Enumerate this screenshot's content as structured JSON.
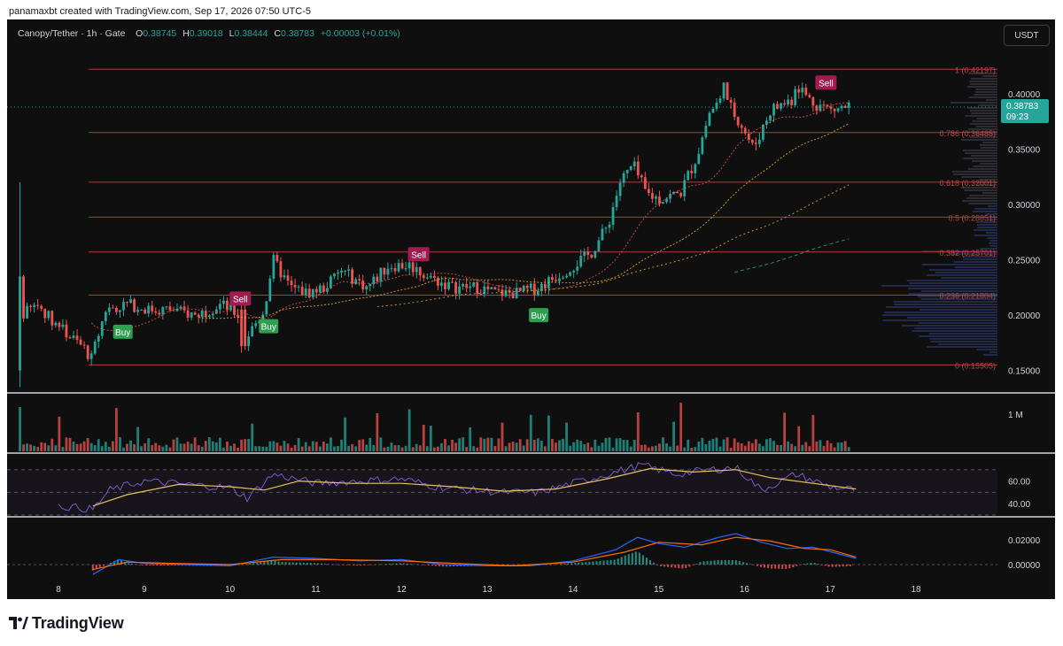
{
  "credit": "panamaxbt created with TradingView.com, Sep 17, 2026 07:50 UTC-5",
  "symbol_legend": {
    "pair": "Canopy/Tether",
    "interval": "1h",
    "exchange": "Gate",
    "o_label": "O",
    "o": "0.38745",
    "h_label": "H",
    "h": "0.39018",
    "l_label": "L",
    "l": "0.38444",
    "c_label": "C",
    "c": "0.38783",
    "change": "+0.00003 (+0.01%)"
  },
  "currency_button": "USDT",
  "brand": {
    "name": "TradingView",
    "logo_icon": "tradingview-logo-icon"
  },
  "colors": {
    "background": "#0f0f0f",
    "up": "#26a69a",
    "down": "#ef5350",
    "fib_line": "#b23a3a",
    "fib_label": "#b74545",
    "last_price": "#26a69a",
    "buy": "#2e9e4f",
    "sell": "#a01b4f",
    "rsi": "#7e57c2",
    "rsi_ma": "#e6c35c",
    "macd": "#2962ff",
    "macd_signal": "#ff6d00"
  },
  "chart_data": {
    "type": "candlestick",
    "title": "Canopy/Tether · 1h · Gate",
    "x_ticks": [
      "8",
      "9",
      "10",
      "11",
      "12",
      "13",
      "14",
      "15",
      "16",
      "17",
      "18"
    ],
    "x_range_days": [
      7.4,
      18.95
    ],
    "price_axis": {
      "ticks": [
        "0.15000",
        "0.20000",
        "0.25000",
        "0.30000",
        "0.35000",
        "0.40000"
      ],
      "range": [
        0.133,
        0.435
      ]
    },
    "last_price": {
      "value": "0.38783",
      "countdown": "09:23"
    },
    "fib_levels": [
      {
        "label": "1 (0.42197)",
        "value": 0.42197
      },
      {
        "label": "0.786 (0.36485)",
        "value": 0.36485
      },
      {
        "label": "0.618 (0.32001)",
        "value": 0.32001
      },
      {
        "label": "0.5 (0.28851)",
        "value": 0.28851
      },
      {
        "label": "0.382 (0.25701)",
        "value": 0.25701
      },
      {
        "label": "0.236 (0.21804)",
        "value": 0.21804
      },
      {
        "label": "0 (0.15505)",
        "value": 0.15505
      }
    ],
    "fib_x_start_day": 8.35,
    "price_path": [
      [
        7.55,
        0.3
      ],
      [
        7.58,
        0.2
      ],
      [
        7.75,
        0.21
      ],
      [
        8.0,
        0.19
      ],
      [
        8.3,
        0.17
      ],
      [
        8.38,
        0.16
      ],
      [
        8.55,
        0.205
      ],
      [
        8.8,
        0.21
      ],
      [
        9.05,
        0.205
      ],
      [
        9.3,
        0.205
      ],
      [
        9.6,
        0.2
      ],
      [
        9.9,
        0.21
      ],
      [
        10.1,
        0.2
      ],
      [
        10.15,
        0.175
      ],
      [
        10.4,
        0.205
      ],
      [
        10.5,
        0.25
      ],
      [
        10.7,
        0.225
      ],
      [
        10.9,
        0.22
      ],
      [
        11.1,
        0.225
      ],
      [
        11.3,
        0.24
      ],
      [
        11.6,
        0.225
      ],
      [
        11.85,
        0.245
      ],
      [
        12.1,
        0.245
      ],
      [
        12.3,
        0.235
      ],
      [
        12.6,
        0.225
      ],
      [
        12.9,
        0.225
      ],
      [
        13.1,
        0.22
      ],
      [
        13.35,
        0.22
      ],
      [
        13.6,
        0.225
      ],
      [
        13.9,
        0.24
      ],
      [
        14.2,
        0.255
      ],
      [
        14.4,
        0.28
      ],
      [
        14.55,
        0.32
      ],
      [
        14.7,
        0.335
      ],
      [
        14.85,
        0.31
      ],
      [
        15.0,
        0.305
      ],
      [
        15.25,
        0.31
      ],
      [
        15.45,
        0.345
      ],
      [
        15.6,
        0.385
      ],
      [
        15.75,
        0.395
      ],
      [
        15.95,
        0.375
      ],
      [
        16.1,
        0.35
      ],
      [
        16.3,
        0.385
      ],
      [
        16.55,
        0.395
      ],
      [
        16.6,
        0.41
      ],
      [
        16.75,
        0.395
      ],
      [
        17.0,
        0.385
      ],
      [
        17.2,
        0.3878
      ]
    ],
    "volume_label": "1 M",
    "rsi_axis": {
      "ticks": [
        "40.00",
        "60.00"
      ]
    },
    "rsi_path": [
      [
        8.0,
        38
      ],
      [
        8.4,
        35
      ],
      [
        8.6,
        52
      ],
      [
        9.0,
        60
      ],
      [
        9.5,
        57
      ],
      [
        10.0,
        54
      ],
      [
        10.2,
        45
      ],
      [
        10.5,
        66
      ],
      [
        11.0,
        58
      ],
      [
        11.5,
        60
      ],
      [
        12.0,
        62
      ],
      [
        12.4,
        55
      ],
      [
        12.8,
        52
      ],
      [
        13.2,
        50
      ],
      [
        13.6,
        50
      ],
      [
        14.0,
        58
      ],
      [
        14.5,
        68
      ],
      [
        14.8,
        74
      ],
      [
        15.2,
        66
      ],
      [
        15.6,
        70
      ],
      [
        15.9,
        72
      ],
      [
        16.2,
        52
      ],
      [
        16.6,
        66
      ],
      [
        17.0,
        55
      ],
      [
        17.3,
        52
      ]
    ],
    "rsi_ma_path": [
      [
        8.4,
        38
      ],
      [
        8.8,
        48
      ],
      [
        9.4,
        57
      ],
      [
        10.0,
        55
      ],
      [
        10.4,
        52
      ],
      [
        10.8,
        60
      ],
      [
        11.4,
        58
      ],
      [
        12.0,
        58
      ],
      [
        12.6,
        55
      ],
      [
        13.2,
        51
      ],
      [
        13.8,
        53
      ],
      [
        14.4,
        62
      ],
      [
        14.9,
        71
      ],
      [
        15.4,
        68
      ],
      [
        15.9,
        70
      ],
      [
        16.3,
        63
      ],
      [
        16.8,
        58
      ],
      [
        17.3,
        53
      ]
    ],
    "macd_axis": {
      "ticks": [
        "0.00000",
        "0.02000"
      ]
    },
    "macd_path": [
      [
        8.4,
        -0.008
      ],
      [
        8.7,
        0.004
      ],
      [
        9.0,
        0.001
      ],
      [
        9.5,
        0.0
      ],
      [
        10.0,
        -0.001
      ],
      [
        10.5,
        0.006
      ],
      [
        11.0,
        0.005
      ],
      [
        11.5,
        0.003
      ],
      [
        12.0,
        0.004
      ],
      [
        12.5,
        0.0
      ],
      [
        13.0,
        -0.001
      ],
      [
        13.5,
        -0.001
      ],
      [
        14.0,
        0.003
      ],
      [
        14.5,
        0.012
      ],
      [
        14.75,
        0.022
      ],
      [
        15.0,
        0.017
      ],
      [
        15.3,
        0.014
      ],
      [
        15.7,
        0.022
      ],
      [
        15.9,
        0.025
      ],
      [
        16.2,
        0.018
      ],
      [
        16.5,
        0.013
      ],
      [
        16.8,
        0.014
      ],
      [
        17.3,
        0.005
      ]
    ],
    "macd_signal_path": [
      [
        8.4,
        -0.004
      ],
      [
        8.8,
        0.002
      ],
      [
        9.3,
        0.001
      ],
      [
        10.0,
        0.0
      ],
      [
        10.6,
        0.004
      ],
      [
        11.2,
        0.004
      ],
      [
        12.0,
        0.003
      ],
      [
        12.6,
        0.001
      ],
      [
        13.3,
        -0.001
      ],
      [
        14.0,
        0.002
      ],
      [
        14.6,
        0.01
      ],
      [
        15.0,
        0.018
      ],
      [
        15.5,
        0.016
      ],
      [
        15.9,
        0.022
      ],
      [
        16.3,
        0.019
      ],
      [
        16.7,
        0.013
      ],
      [
        17.0,
        0.012
      ],
      [
        17.3,
        0.006
      ]
    ],
    "signals": [
      {
        "label": "Buy",
        "day": 8.75,
        "value": 0.185,
        "type": "buy"
      },
      {
        "label": "Sell",
        "day": 10.12,
        "value": 0.215,
        "type": "sell"
      },
      {
        "label": "Buy",
        "day": 10.45,
        "value": 0.19,
        "type": "buy"
      },
      {
        "label": "Sell",
        "day": 12.2,
        "value": 0.255,
        "type": "sell"
      },
      {
        "label": "Buy",
        "day": 13.6,
        "value": 0.2,
        "type": "buy"
      },
      {
        "label": "Sell",
        "day": 16.95,
        "value": 0.41,
        "type": "sell"
      }
    ],
    "grid": false
  }
}
